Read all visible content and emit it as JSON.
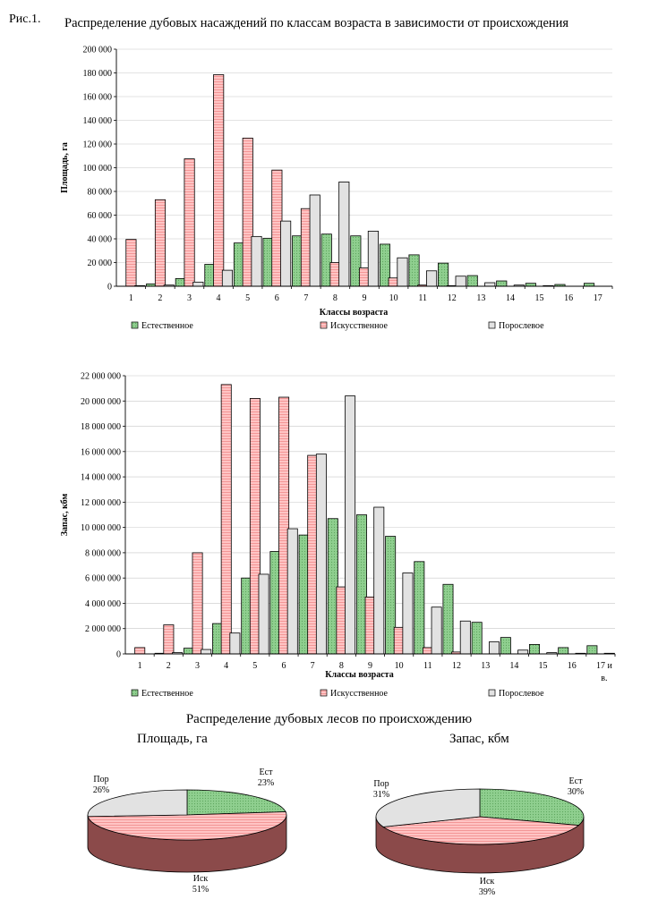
{
  "figure_label": "Рис.1.",
  "figure_title": "Распределение дубовых насаждений по классам возраста в зависимости от происхождения",
  "pies_title": "Распределение дубовых лесов по происхождению",
  "colors": {
    "natural": "#8fcf8f",
    "artificial": "#ffb8b8",
    "coppice": "#e2e2e2",
    "pie_side": "#8b4a4a"
  },
  "chart_data": [
    {
      "type": "bar",
      "ylabel": "Площадь, га",
      "xlabel": "Классы возраста",
      "ylim": [
        0,
        200000
      ],
      "yticks": [
        0,
        20000,
        40000,
        60000,
        80000,
        100000,
        120000,
        140000,
        160000,
        180000,
        200000
      ],
      "ytick_labels": [
        "0",
        "20 000",
        "40 000",
        "60 000",
        "80 000",
        "100 000",
        "120 000",
        "140 000",
        "160 000",
        "180 000",
        "200 000"
      ],
      "categories": [
        "1",
        "2",
        "3",
        "4",
        "5",
        "6",
        "7",
        "8",
        "9",
        "10",
        "11",
        "12",
        "13",
        "14",
        "15",
        "16",
        "17"
      ],
      "series": [
        {
          "name": "Естественное",
          "values": [
            0,
            2000,
            6500,
            18500,
            36500,
            40500,
            42500,
            44000,
            42500,
            35500,
            26500,
            19500,
            9000,
            4500,
            2500,
            1500,
            2500
          ]
        },
        {
          "name": "Искусственное",
          "values": [
            39500,
            73000,
            107500,
            178500,
            125000,
            98000,
            65500,
            20000,
            15500,
            7000,
            1000,
            500,
            0,
            0,
            0,
            0,
            0
          ]
        },
        {
          "name": "Порослевое",
          "values": [
            500,
            1000,
            3500,
            13500,
            42000,
            55000,
            77000,
            88000,
            46500,
            24000,
            13000,
            8500,
            3000,
            1000,
            500,
            0,
            0
          ]
        }
      ],
      "grid": true,
      "legend": "bottom"
    },
    {
      "type": "bar",
      "ylabel": "Запас, кбм",
      "xlabel": "Классы возраста",
      "ylim": [
        0,
        22000000
      ],
      "yticks": [
        0,
        2000000,
        4000000,
        6000000,
        8000000,
        10000000,
        12000000,
        14000000,
        16000000,
        18000000,
        20000000,
        22000000
      ],
      "ytick_labels": [
        "0",
        "2 000 000",
        "4 000 000",
        "6 000 000",
        "8 000 000",
        "10 000 000",
        "12 000 000",
        "14 000 000",
        "16 000 000",
        "18 000 000",
        "20 000 000",
        "22 000 000"
      ],
      "categories": [
        "1",
        "2",
        "3",
        "4",
        "5",
        "6",
        "7",
        "8",
        "9",
        "10",
        "11",
        "12",
        "13",
        "14",
        "15",
        "16",
        "17 и в."
      ],
      "series": [
        {
          "name": "Естественное",
          "values": [
            0,
            50000,
            450000,
            2400000,
            6000000,
            8100000,
            9400000,
            10700000,
            11000000,
            9300000,
            7300000,
            5500000,
            2500000,
            1300000,
            750000,
            500000,
            650000
          ]
        },
        {
          "name": "Искусственное",
          "values": [
            500000,
            2300000,
            8000000,
            21300000,
            20200000,
            20300000,
            15700000,
            5300000,
            4500000,
            2100000,
            500000,
            150000,
            0,
            0,
            0,
            0,
            0
          ]
        },
        {
          "name": "Порослевое",
          "values": [
            0,
            100000,
            350000,
            1650000,
            6300000,
            9900000,
            15800000,
            20400000,
            11600000,
            6400000,
            3700000,
            2600000,
            950000,
            300000,
            100000,
            50000,
            50000
          ]
        }
      ],
      "grid": true,
      "legend": "bottom"
    },
    {
      "type": "pie",
      "title": "Площадь, га",
      "slices": [
        {
          "label": "Ест",
          "value": 23,
          "pct": "23%"
        },
        {
          "label": "Иск",
          "value": 51,
          "pct": "51%"
        },
        {
          "label": "Пор",
          "value": 26,
          "pct": "26%"
        }
      ]
    },
    {
      "type": "pie",
      "title": "Запас, кбм",
      "slices": [
        {
          "label": "Ест",
          "value": 30,
          "pct": "30%"
        },
        {
          "label": "Иск",
          "value": 39,
          "pct": "39%"
        },
        {
          "label": "Пор",
          "value": 31,
          "pct": "31%"
        }
      ]
    }
  ]
}
